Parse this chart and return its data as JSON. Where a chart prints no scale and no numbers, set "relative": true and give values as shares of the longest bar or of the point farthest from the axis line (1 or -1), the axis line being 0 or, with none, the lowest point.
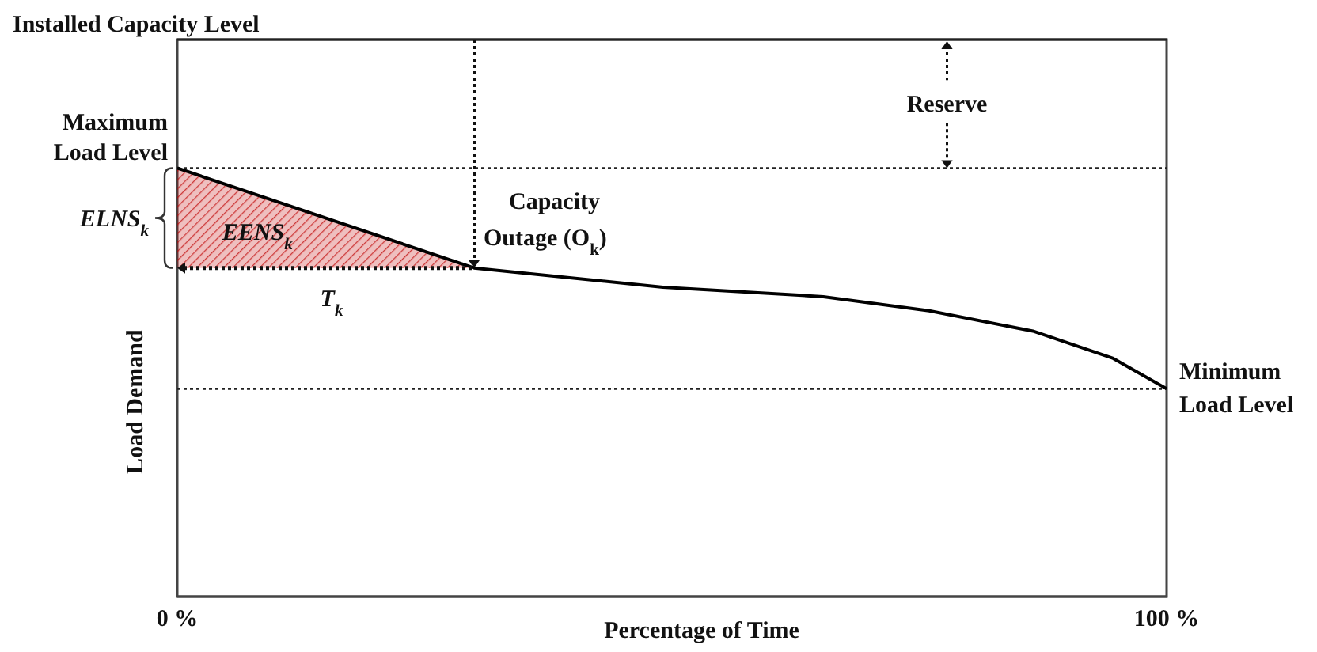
{
  "chart_data": {
    "type": "line",
    "relative": true,
    "xlabel": "Percentage of Time",
    "ylabel": "Load Demand",
    "xlim": [
      0,
      100
    ],
    "xticks": [
      {
        "value": 0,
        "label": "0 %"
      },
      {
        "value": 100,
        "label": "100 %"
      }
    ],
    "marker": "none",
    "line_style": "solid",
    "series": [
      {
        "color": "#000000",
        "x": [
          0,
          30,
          49.1,
          65.3,
          76,
          86.6,
          94.6,
          100
        ],
        "values": [
          1,
          0.767,
          0.722,
          0.7,
          0.667,
          0.619,
          0.556,
          0.485
        ]
      },
      {
        "type": "area",
        "color": "#c00000",
        "x": [
          0,
          30
        ],
        "values": [
          1,
          0.767
        ]
      }
    ],
    "ref_lines": [
      {
        "axis": "y",
        "value": 1.3,
        "label": "Installed Capacity Level",
        "line_style": "solid"
      },
      {
        "axis": "y",
        "value": 1,
        "label": "Maximum Load Level",
        "line_style": "dotted"
      },
      {
        "axis": "y",
        "value": 0.485,
        "label": "Minimum Load Level",
        "line_style": "dotted"
      }
    ],
    "annotations": [
      "ELNS$_{k}$",
      "EENS$_{k}$",
      "T$_{k}$",
      "Capacity Outage (O$_{k}$)",
      "Reserve"
    ]
  }
}
